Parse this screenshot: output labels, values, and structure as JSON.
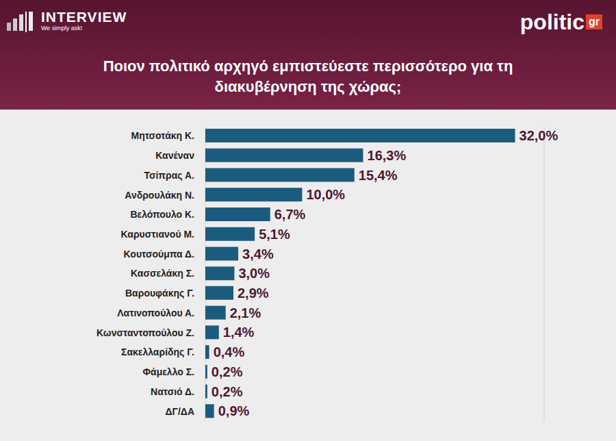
{
  "header": {
    "left_logo": "INTERVIEW",
    "left_tagline": "We simply ask!",
    "right_logo": "politic",
    "right_logo_suffix": "gr"
  },
  "chart_data": {
    "type": "bar",
    "title": "Ποιον πολιτικό αρχηγό εμπιστεύεστε περισσότερο για τη διακυβέρνηση της χώρας;",
    "orientation": "horizontal",
    "categories": [
      "Μητσοτάκη Κ.",
      "Κανέναν",
      "Τσίπρας Α.",
      "Ανδρουλάκη Ν.",
      "Βελόπουλο Κ.",
      "Καρυστιανού Μ.",
      "Κουτσούμπα Δ.",
      "Κασσελάκη Σ.",
      "Βαρουφάκης Γ.",
      "Λατινοπούλου Α.",
      "Κωνσταντοπούλου Ζ.",
      "Σακελλαρίδης Γ.",
      "Φάμελλο Σ.",
      "Νατσιό Δ.",
      "ΔΓ/ΔΑ"
    ],
    "values": [
      32.0,
      16.3,
      15.4,
      10.0,
      6.7,
      5.1,
      3.4,
      3.0,
      2.9,
      2.1,
      1.4,
      0.4,
      0.2,
      0.2,
      0.9
    ],
    "value_labels": [
      "32,0%",
      "16,3%",
      "15,4%",
      "10,0%",
      "6,7%",
      "5,1%",
      "3,4%",
      "3,0%",
      "2,9%",
      "2,1%",
      "1,4%",
      "0,4%",
      "0,2%",
      "0,2%",
      "0,9%"
    ],
    "color": "#1b5c7e",
    "xlim": [
      0,
      35
    ],
    "xticks": [
      0,
      5,
      10,
      15,
      20,
      25,
      30,
      35
    ],
    "grid": true,
    "data_labels": true,
    "tick_labels": "y"
  }
}
